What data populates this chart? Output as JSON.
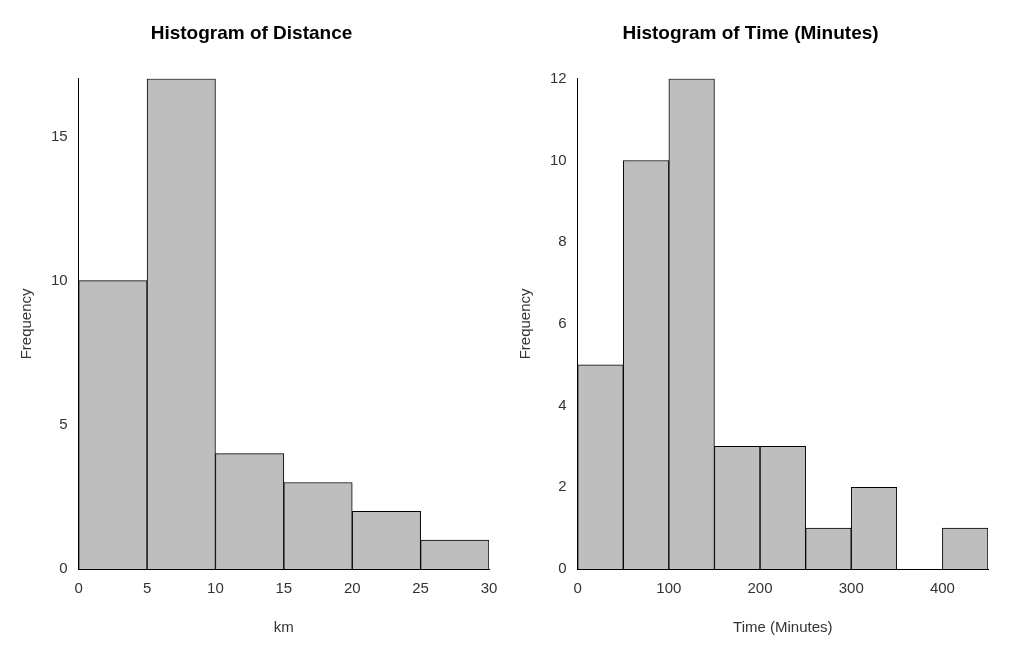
{
  "chart_data": [
    {
      "type": "histogram",
      "title": "Histogram of Distance",
      "xlabel": "km",
      "ylabel": "Frequency",
      "bins": [
        0,
        5,
        10,
        15,
        20,
        25,
        30
      ],
      "values": [
        10,
        17,
        4,
        3,
        2,
        1
      ],
      "color": "#bebebe",
      "xlim": [
        0,
        30
      ],
      "xticks": [
        0,
        5,
        10,
        15,
        20,
        25,
        30
      ],
      "ylim": [
        0,
        17
      ],
      "yticks": [
        0,
        5,
        10,
        15
      ],
      "grid": false,
      "legend": false
    },
    {
      "type": "histogram",
      "title": "Histogram of Time (Minutes)",
      "xlabel": "Time (Minutes)",
      "ylabel": "Frequency",
      "bins": [
        0,
        50,
        100,
        150,
        200,
        250,
        300,
        350,
        400,
        450
      ],
      "values": [
        5,
        10,
        12,
        3,
        3,
        1,
        2,
        0,
        1
      ],
      "color": "#bebebe",
      "xlim": [
        0,
        450
      ],
      "xticks": [
        0,
        100,
        200,
        300,
        400
      ],
      "ylim": [
        0,
        12
      ],
      "yticks": [
        0,
        2,
        4,
        6,
        8,
        10,
        12
      ],
      "grid": false,
      "legend": false
    }
  ]
}
